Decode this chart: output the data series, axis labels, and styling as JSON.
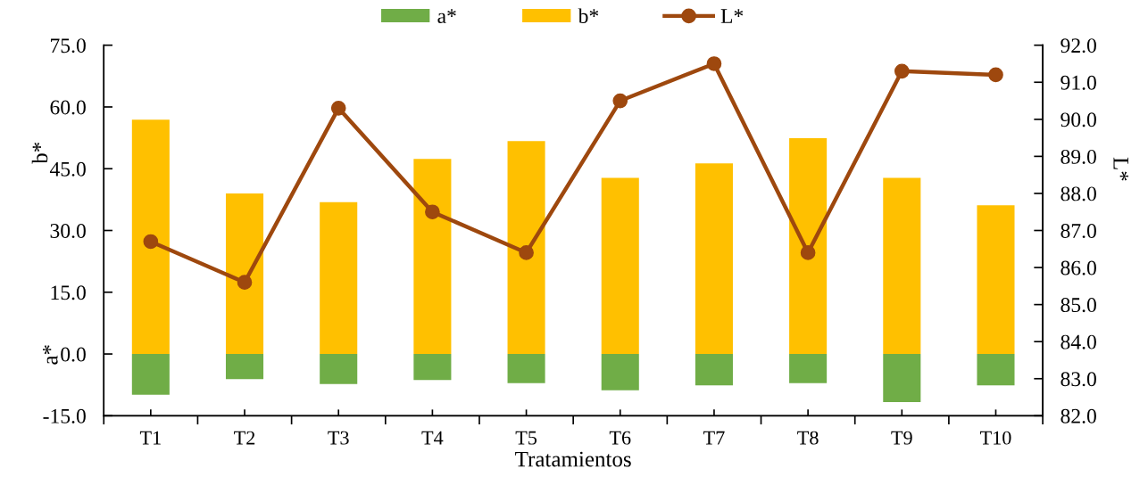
{
  "chart_data": {
    "type": "bar",
    "xlabel": "Tratamientos",
    "ylabel": "b*",
    "y2label": "L*",
    "annotations": [
      "a*"
    ],
    "categories": [
      "T1",
      "T2",
      "T3",
      "T4",
      "T5",
      "T6",
      "T7",
      "T8",
      "T9",
      "T10"
    ],
    "series": [
      {
        "name": "a*",
        "color": "#70ad47",
        "values": [
          -9.9,
          -6.1,
          -7.3,
          -6.3,
          -7.1,
          -8.8,
          -7.6,
          -7.1,
          -11.7,
          -7.6
        ]
      },
      {
        "name": "b*",
        "color": "#ffc000",
        "values": [
          56.9,
          39.0,
          36.9,
          47.4,
          51.7,
          42.8,
          46.3,
          52.4,
          42.8,
          36.1
        ]
      },
      {
        "name": "L*",
        "type": "line",
        "axis": "y2",
        "color": "#9e480e",
        "marker": "circle",
        "line_style": "solid",
        "values": [
          86.7,
          85.6,
          90.3,
          87.5,
          86.4,
          90.5,
          91.5,
          86.4,
          91.3,
          91.2
        ]
      }
    ],
    "stacked": true,
    "ylim": [
      -15,
      75
    ],
    "yticks": [
      {
        "value": -15,
        "label": "-15.0"
      },
      {
        "value": 0,
        "label": "0.0"
      },
      {
        "value": 15,
        "label": "15.0"
      },
      {
        "value": 30,
        "label": "30.0"
      },
      {
        "value": 45,
        "label": "45.0"
      },
      {
        "value": 60,
        "label": "60.0"
      },
      {
        "value": 75,
        "label": "75.0"
      }
    ],
    "y2lim": [
      82,
      92
    ],
    "y2ticks": [
      {
        "value": 82,
        "label": "82.0"
      },
      {
        "value": 83,
        "label": "83.0"
      },
      {
        "value": 84,
        "label": "84.0"
      },
      {
        "value": 85,
        "label": "85.0"
      },
      {
        "value": 86,
        "label": "86.0"
      },
      {
        "value": 87,
        "label": "87.0"
      },
      {
        "value": 88,
        "label": "88.0"
      },
      {
        "value": 89,
        "label": "89.0"
      },
      {
        "value": 90,
        "label": "90.0"
      },
      {
        "value": 91,
        "label": "91.0"
      },
      {
        "value": 92,
        "label": "92.0"
      }
    ],
    "legend": "top",
    "grid": false
  }
}
